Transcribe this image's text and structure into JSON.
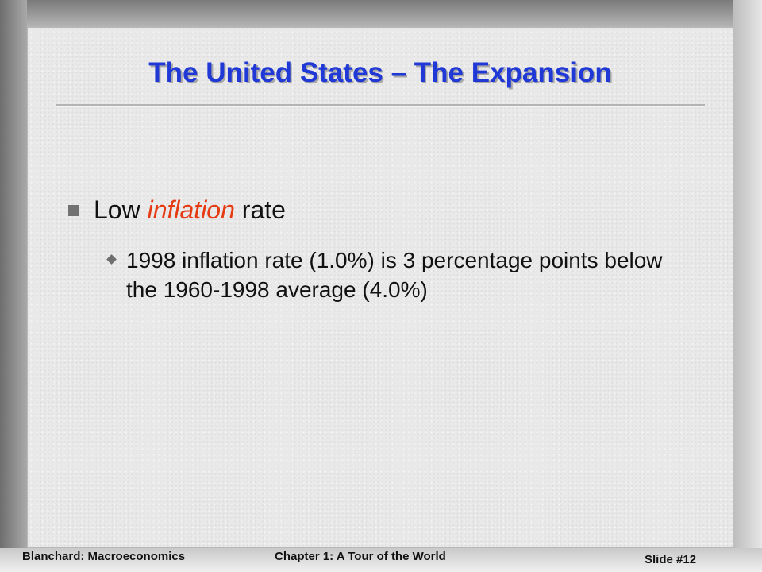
{
  "slide": {
    "title": "The United States – The Expansion",
    "bullet": {
      "prefix": "Low ",
      "emphasis": "inflation",
      "suffix": " rate",
      "subbullet": "1998 inflation rate (1.0%) is 3 percentage points below the 1960-1998 average (4.0%)"
    }
  },
  "footer": {
    "left": "Blanchard: Macroeconomics",
    "center": "Chapter 1: A Tour of the World",
    "right": "Slide #12"
  },
  "colors": {
    "title": "#1f38d6",
    "emphasis": "#e53a12",
    "background": "#e9e9e9"
  }
}
